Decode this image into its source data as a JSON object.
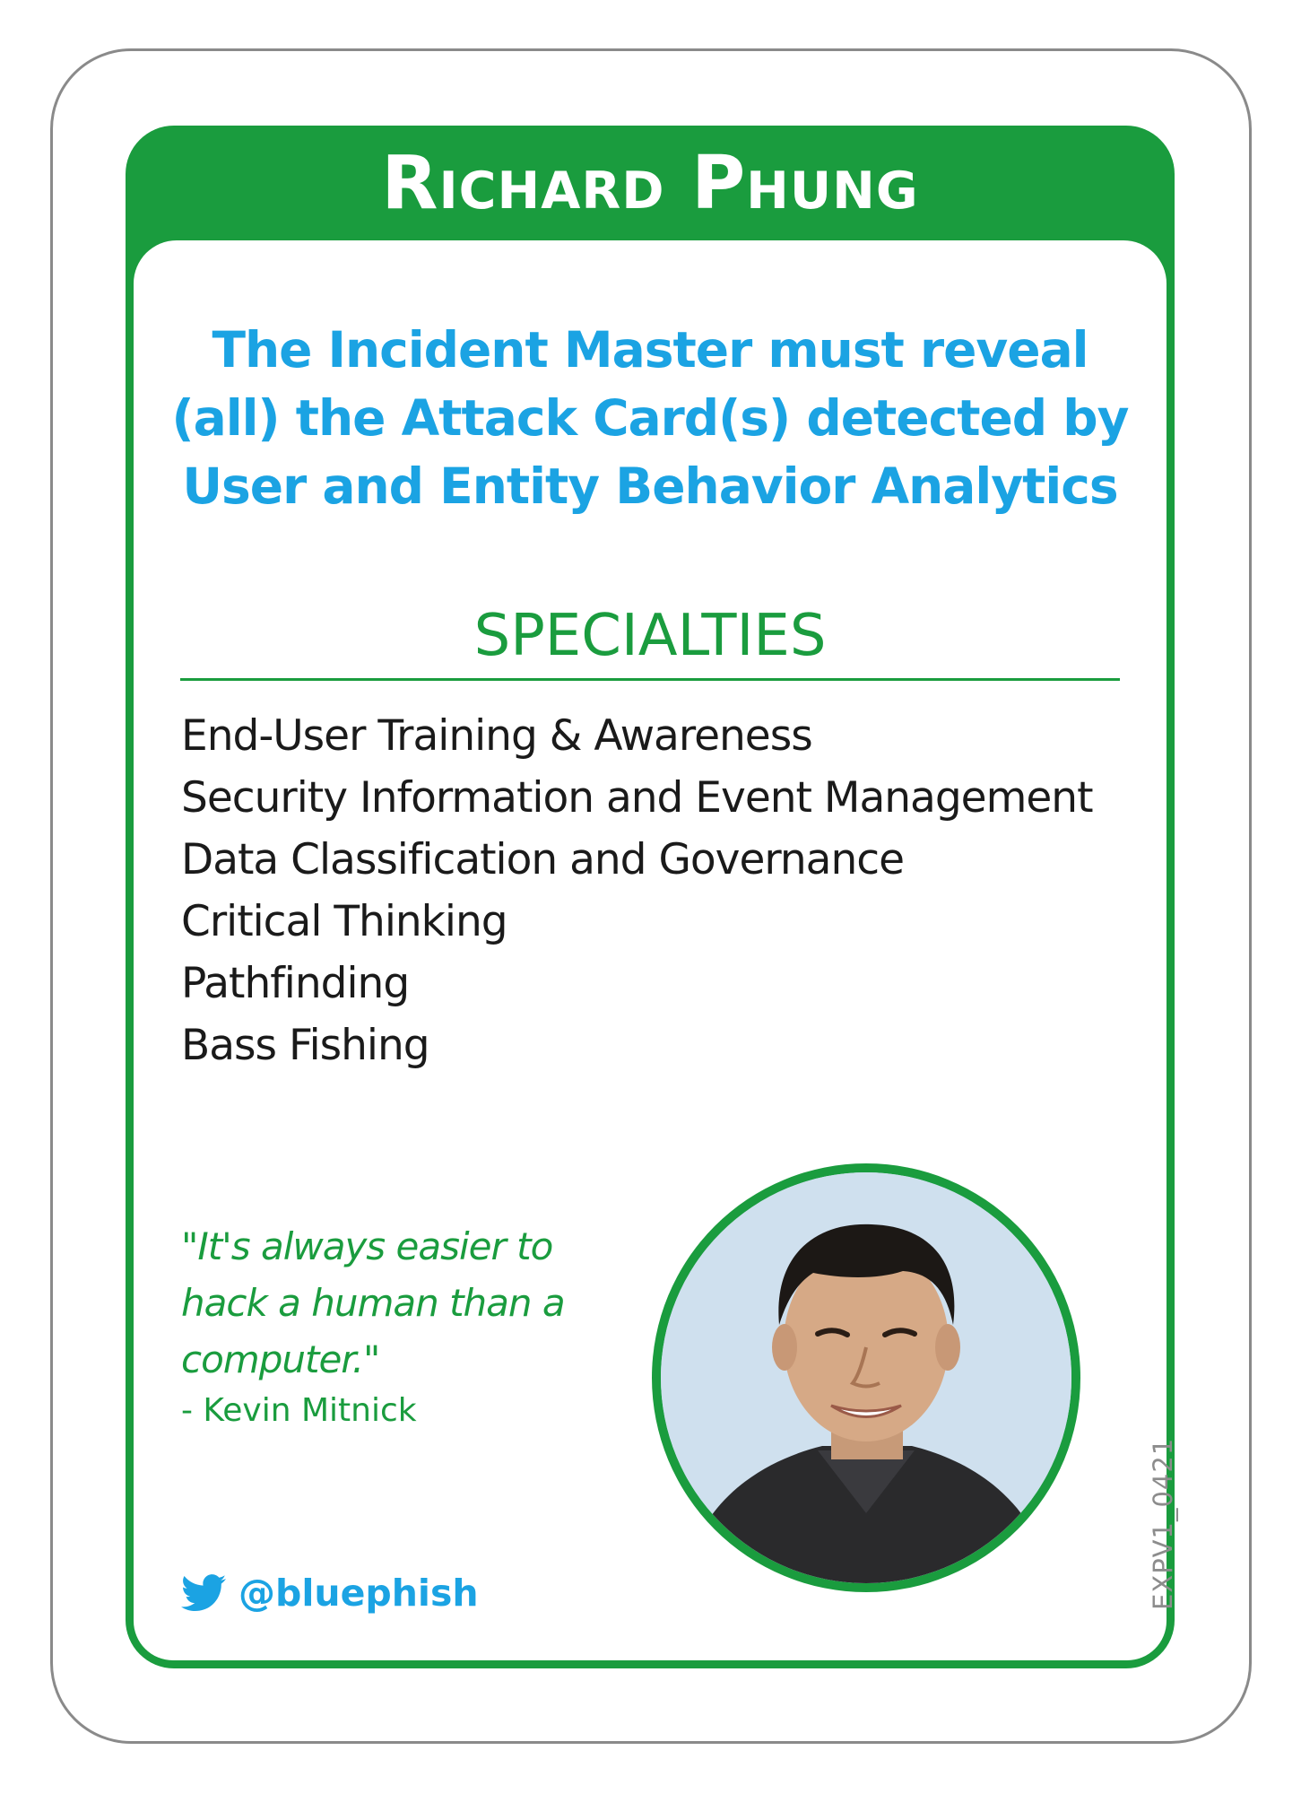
{
  "card": {
    "name": "Richard Phung",
    "ability": "The Incident Master must reveal (all) the Attack Card(s) detected by User and Entity Behavior Analytics",
    "specialties_heading": "SPECIALTIES",
    "specialties": [
      "End-User Training & Awareness",
      "Security Information and Event Management",
      "Data Classification and Governance",
      "Critical Thinking",
      "Pathfinding",
      "Bass Fishing"
    ],
    "quote": "\"It's always easier to hack a human than a computer.\"",
    "quote_author": "- Kevin Mitnick",
    "twitter_icon": "twitter-bird-icon",
    "twitter_handle": "@bluephish",
    "card_code": "EXPV1_0421"
  },
  "colors": {
    "green": "#1a9c3e",
    "blue": "#1ba3e3",
    "text": "#1a1a1a",
    "border": "#8a8a8a"
  }
}
